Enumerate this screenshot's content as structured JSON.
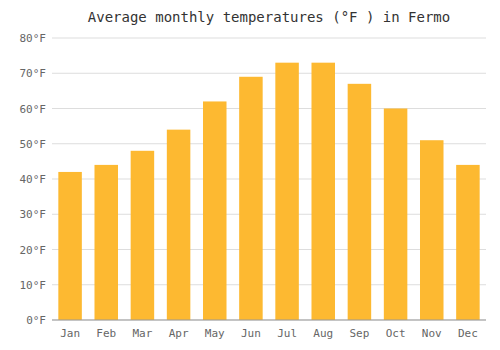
{
  "chart_data": {
    "type": "bar",
    "title": "Average monthly temperatures (°F ) in Fermo",
    "categories": [
      "Jan",
      "Feb",
      "Mar",
      "Apr",
      "May",
      "Jun",
      "Jul",
      "Aug",
      "Sep",
      "Oct",
      "Nov",
      "Dec"
    ],
    "values": [
      42,
      44,
      48,
      54,
      62,
      69,
      73,
      73,
      67,
      60,
      51,
      44
    ],
    "color": "#FDB931",
    "ylim": [
      0,
      80
    ],
    "yticks": [
      {
        "value": 0,
        "label": "0°F"
      },
      {
        "value": 10,
        "label": "10°F"
      },
      {
        "value": 20,
        "label": "20°F"
      },
      {
        "value": 30,
        "label": "30°F"
      },
      {
        "value": 40,
        "label": "40°F"
      },
      {
        "value": 50,
        "label": "50°F"
      },
      {
        "value": 60,
        "label": "60°F"
      },
      {
        "value": 70,
        "label": "70°F"
      },
      {
        "value": 80,
        "label": "80°F"
      }
    ],
    "grid": true
  }
}
